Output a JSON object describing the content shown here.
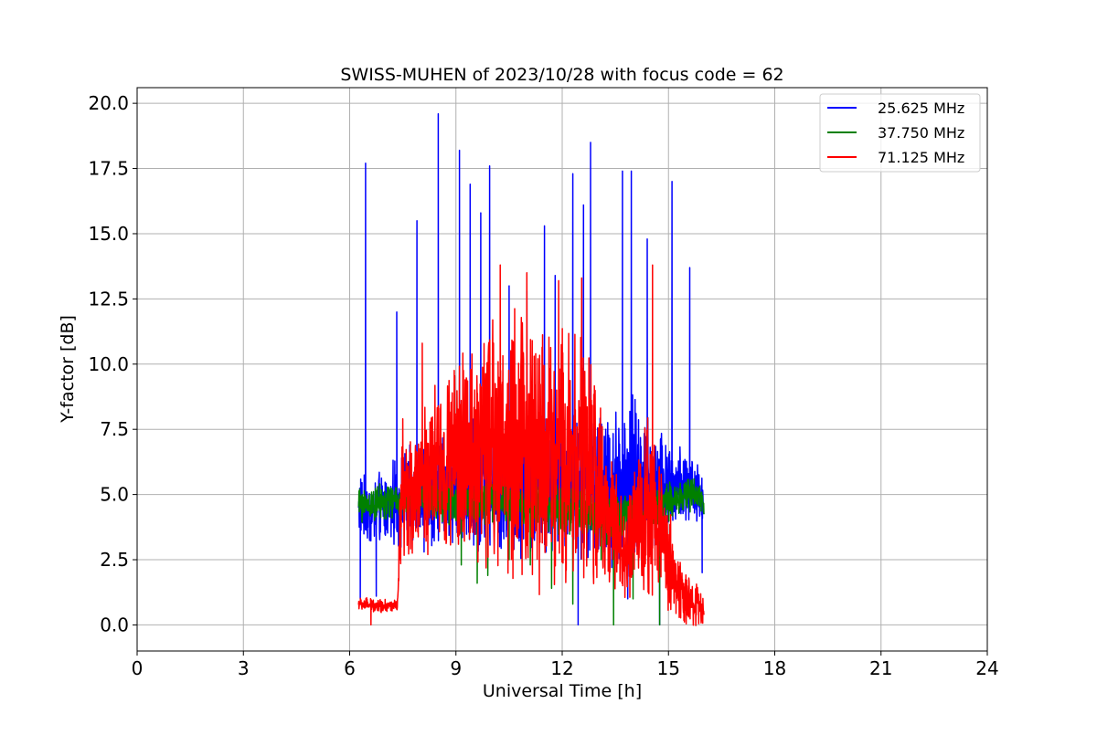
{
  "chart_data": {
    "type": "line",
    "title": "SWISS-MUHEN of 2023/10/28 with focus code = 62",
    "xlabel": "Universal Time [h]",
    "ylabel": "Y-factor [dB]",
    "xlim": [
      0,
      24
    ],
    "ylim": [
      -1.0,
      20.6
    ],
    "xticks": [
      0,
      3,
      6,
      9,
      12,
      15,
      18,
      21,
      24
    ],
    "xtick_labels": [
      "0",
      "3",
      "6",
      "9",
      "12",
      "15",
      "18",
      "21",
      "24"
    ],
    "yticks": [
      0,
      2.5,
      5,
      7.5,
      10,
      12.5,
      15,
      17.5,
      20
    ],
    "ytick_labels": [
      "0.0",
      "2.5",
      "5.0",
      "7.5",
      "10.0",
      "12.5",
      "15.0",
      "17.5",
      "20.0"
    ],
    "grid": true,
    "legend_position": "top-right",
    "legend_entries": [
      "25.625 MHz",
      "37.750 MHz",
      "71.125 MHz"
    ],
    "series": [
      {
        "name": "25.625 MHz",
        "color": "#0000ff",
        "time_range": [
          6.25,
          16.0
        ],
        "baseline": [
          [
            6.25,
            4.6
          ],
          [
            6.5,
            4.2
          ],
          [
            7.0,
            4.5
          ],
          [
            7.5,
            4.8
          ],
          [
            8.0,
            5.0
          ],
          [
            9.0,
            5.2
          ],
          [
            10.0,
            5.5
          ],
          [
            11.0,
            5.3
          ],
          [
            12.0,
            5.5
          ],
          [
            12.8,
            5.4
          ],
          [
            13.3,
            5.2
          ],
          [
            14.0,
            5.5
          ],
          [
            14.8,
            5.6
          ],
          [
            15.5,
            5.2
          ],
          [
            16.0,
            4.8
          ]
        ],
        "noise": [
          [
            6.25,
            1.4
          ],
          [
            7.0,
            1.6
          ],
          [
            8.0,
            2.2
          ],
          [
            10.0,
            2.8
          ],
          [
            12.0,
            3.0
          ],
          [
            13.0,
            3.2
          ],
          [
            14.0,
            3.5
          ],
          [
            15.0,
            2.0
          ],
          [
            16.0,
            1.2
          ]
        ],
        "peaks": [
          {
            "t": 6.3,
            "v": 1.0
          },
          {
            "t": 6.45,
            "v": 17.7
          },
          {
            "t": 6.75,
            "v": 1.1
          },
          {
            "t": 7.33,
            "v": 12.0
          },
          {
            "t": 7.9,
            "v": 15.5
          },
          {
            "t": 8.1,
            "v": 2.8
          },
          {
            "t": 8.5,
            "v": 19.6
          },
          {
            "t": 9.1,
            "v": 18.2
          },
          {
            "t": 9.4,
            "v": 16.9
          },
          {
            "t": 9.7,
            "v": 15.8
          },
          {
            "t": 9.95,
            "v": 17.6
          },
          {
            "t": 10.5,
            "v": 13.0
          },
          {
            "t": 11.0,
            "v": 12.8
          },
          {
            "t": 11.5,
            "v": 15.3
          },
          {
            "t": 11.8,
            "v": 13.4
          },
          {
            "t": 12.3,
            "v": 17.3
          },
          {
            "t": 12.45,
            "v": 0.0
          },
          {
            "t": 12.6,
            "v": 16.1
          },
          {
            "t": 12.8,
            "v": 18.5
          },
          {
            "t": 13.2,
            "v": 2.8
          },
          {
            "t": 13.4,
            "v": 2.2
          },
          {
            "t": 13.7,
            "v": 17.4
          },
          {
            "t": 13.85,
            "v": 1.0
          },
          {
            "t": 13.95,
            "v": 17.4
          },
          {
            "t": 14.4,
            "v": 14.8
          },
          {
            "t": 14.75,
            "v": 0.0
          },
          {
            "t": 15.1,
            "v": 17.0
          },
          {
            "t": 15.6,
            "v": 13.7
          },
          {
            "t": 15.95,
            "v": 2.0
          }
        ]
      },
      {
        "name": "37.750 MHz",
        "color": "#008000",
        "time_range": [
          6.25,
          16.0
        ],
        "baseline": [
          [
            6.25,
            4.6
          ],
          [
            7.0,
            4.7
          ],
          [
            8.0,
            4.9
          ],
          [
            9.0,
            4.7
          ],
          [
            10.0,
            4.8
          ],
          [
            11.0,
            4.6
          ],
          [
            12.0,
            4.5
          ],
          [
            12.8,
            4.4
          ],
          [
            13.3,
            4.0
          ],
          [
            14.0,
            4.3
          ],
          [
            14.8,
            4.6
          ],
          [
            15.5,
            5.0
          ],
          [
            16.0,
            4.8
          ]
        ],
        "noise": [
          [
            6.25,
            0.7
          ],
          [
            8.0,
            0.9
          ],
          [
            10.0,
            1.0
          ],
          [
            12.0,
            1.1
          ],
          [
            13.5,
            1.2
          ],
          [
            15.0,
            0.8
          ],
          [
            16.0,
            0.7
          ]
        ],
        "peaks": [
          {
            "t": 9.15,
            "v": 2.3
          },
          {
            "t": 9.6,
            "v": 1.6
          },
          {
            "t": 9.9,
            "v": 1.9
          },
          {
            "t": 10.5,
            "v": 2.5
          },
          {
            "t": 11.1,
            "v": 2.3
          },
          {
            "t": 11.7,
            "v": 1.4
          },
          {
            "t": 12.3,
            "v": 0.8
          },
          {
            "t": 13.1,
            "v": 2.5
          },
          {
            "t": 13.45,
            "v": 0.0
          },
          {
            "t": 14.0,
            "v": 1.0
          },
          {
            "t": 14.75,
            "v": 0.0
          }
        ]
      },
      {
        "name": "71.125 MHz",
        "color": "#ff0000",
        "time_range": [
          6.25,
          16.0
        ],
        "baseline": [
          [
            6.25,
            0.8
          ],
          [
            7.35,
            0.7
          ],
          [
            7.45,
            4.5
          ],
          [
            8.0,
            5.5
          ],
          [
            9.0,
            6.5
          ],
          [
            10.0,
            7.0
          ],
          [
            11.0,
            7.0
          ],
          [
            12.0,
            6.8
          ],
          [
            12.8,
            6.0
          ],
          [
            13.3,
            4.0
          ],
          [
            13.8,
            2.5
          ],
          [
            14.3,
            4.5
          ],
          [
            14.8,
            4.0
          ],
          [
            15.2,
            1.5
          ],
          [
            16.0,
            0.5
          ]
        ],
        "noise": [
          [
            6.25,
            0.3
          ],
          [
            7.35,
            0.3
          ],
          [
            7.45,
            2.5
          ],
          [
            8.0,
            3.0
          ],
          [
            9.0,
            4.0
          ],
          [
            10.0,
            5.8
          ],
          [
            11.0,
            6.0
          ],
          [
            12.0,
            6.0
          ],
          [
            12.8,
            5.0
          ],
          [
            13.3,
            3.0
          ],
          [
            13.8,
            2.0
          ],
          [
            14.3,
            4.0
          ],
          [
            14.8,
            3.5
          ],
          [
            15.2,
            1.5
          ],
          [
            16.0,
            0.8
          ]
        ],
        "peaks": [
          {
            "t": 6.6,
            "v": 0.0
          },
          {
            "t": 7.5,
            "v": 7.9
          },
          {
            "t": 8.05,
            "v": 10.8
          },
          {
            "t": 10.25,
            "v": 13.8
          },
          {
            "t": 11.0,
            "v": 13.5
          },
          {
            "t": 11.9,
            "v": 13.2
          },
          {
            "t": 12.55,
            "v": 13.3
          },
          {
            "t": 14.55,
            "v": 13.8
          }
        ]
      }
    ]
  }
}
